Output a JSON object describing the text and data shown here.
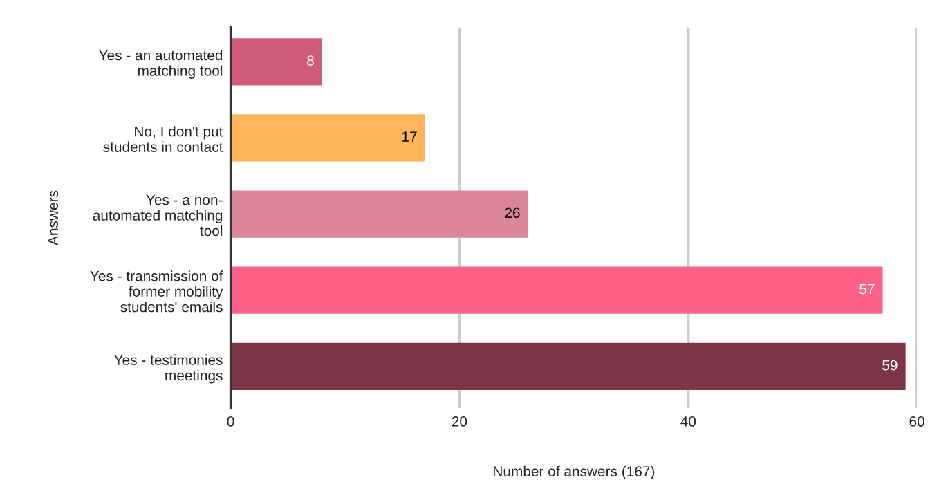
{
  "chart_data": {
    "type": "bar",
    "orientation": "horizontal",
    "xlabel": "Number of answers (167)",
    "ylabel": "Answers",
    "categories": [
      "Yes - an automated\nmatching tool",
      "No, I don't put\nstudents in contact",
      "Yes - a non-\nautomated matching\ntool",
      "Yes - transmission of\nformer mobility\nstudents' emails",
      "Yes - testimonies\nmeetings"
    ],
    "values": [
      8,
      17,
      26,
      57,
      59
    ],
    "colors": [
      "#d05c7a",
      "#ffb35a",
      "#db8599",
      "#ff6289",
      "#7d3548"
    ],
    "xlim": [
      0,
      60
    ],
    "xticks": [
      0,
      20,
      40,
      60
    ],
    "grid": "x",
    "data_labels": true
  }
}
